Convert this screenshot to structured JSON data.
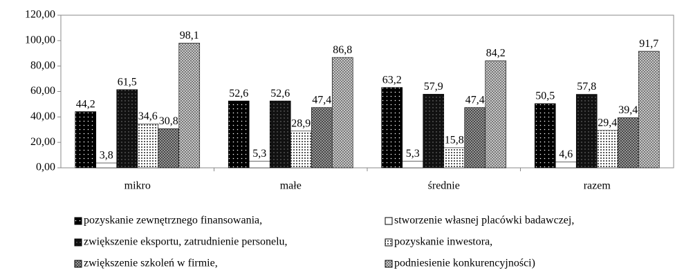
{
  "chart_data": {
    "type": "bar",
    "categories": [
      "mikro",
      "małe",
      "średnie",
      "razem"
    ],
    "series": [
      {
        "name": "pozyskanie zewnętrznego finansowania,",
        "color": "#000000",
        "values": [
          44.2,
          52.6,
          63.2,
          50.5
        ],
        "value_labels": [
          "44,2",
          "52,6",
          "63,2",
          "50,5"
        ]
      },
      {
        "name": "stworzenie własnej placówki badawczej,",
        "color": "#ffffff",
        "values": [
          3.8,
          5.3,
          5.3,
          4.6
        ],
        "value_labels": [
          "3,8",
          "5,3",
          "5,3",
          "4,6"
        ]
      },
      {
        "name": "zwiększenie eksportu, zatrudnienie personelu,",
        "color": "#1a1a1a",
        "values": [
          61.5,
          52.6,
          57.9,
          57.8
        ],
        "value_labels": [
          "61,5",
          "52,6",
          "57,9",
          "57,8"
        ]
      },
      {
        "name": "pozyskanie inwestora,",
        "color": "#f2f2f2",
        "values": [
          34.6,
          28.9,
          15.8,
          29.4
        ],
        "value_labels": [
          "34,6",
          "28,9",
          "15,8",
          "29,4"
        ]
      },
      {
        "name": "zwiększenie szkoleń w firmie,",
        "color": "#555555",
        "values": [
          30.8,
          47.4,
          47.4,
          39.4
        ],
        "value_labels": [
          "30,8",
          "47,4",
          "47,4",
          "39,4"
        ]
      },
      {
        "name": "podniesienie konkurencyjności)",
        "color": "#bdbdbd",
        "values": [
          98.1,
          86.8,
          84.2,
          91.7
        ],
        "value_labels": [
          "98,1",
          "86,8",
          "84,2",
          "91,7"
        ]
      }
    ],
    "ylim": [
      0,
      120
    ],
    "yticks": [
      {
        "value": 0,
        "label": "0,00"
      },
      {
        "value": 20,
        "label": "20,00"
      },
      {
        "value": 40,
        "label": "40,00"
      },
      {
        "value": 60,
        "label": "60,00"
      },
      {
        "value": 80,
        "label": "80,00"
      },
      {
        "value": 100,
        "label": "100,00"
      },
      {
        "value": 120,
        "label": "120,00"
      }
    ],
    "legend": "bottom"
  }
}
